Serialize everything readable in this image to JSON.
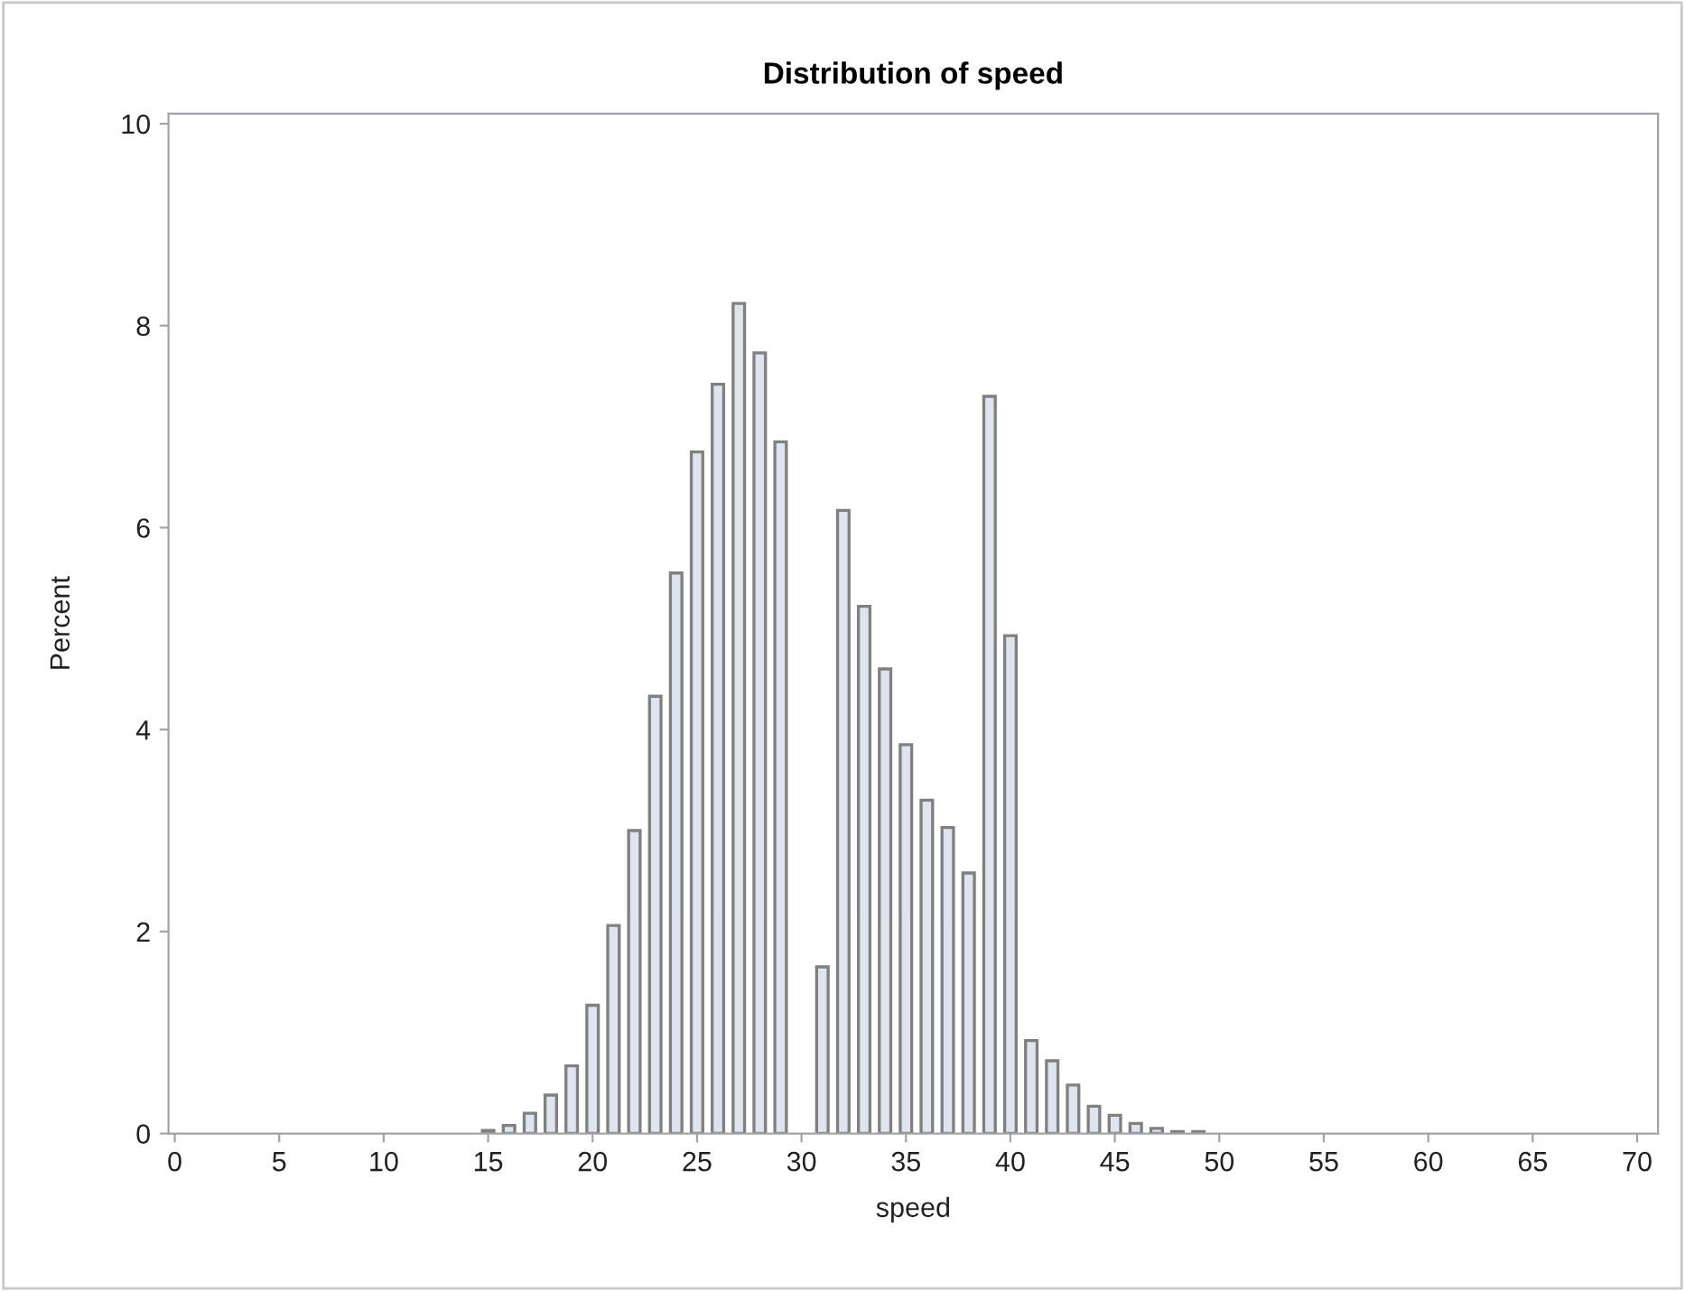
{
  "chart_data": {
    "type": "histogram",
    "title": "Distribution of speed",
    "xlabel": "speed",
    "ylabel": "Percent",
    "bins": [
      14.5,
      15.5,
      16.5,
      17.5,
      18.5,
      19.5,
      20.5,
      21.5,
      22.5,
      23.5,
      24.5,
      25.5,
      26.5,
      27.5,
      28.5,
      29.5,
      30.5,
      31.5,
      32.5,
      33.5,
      34.5,
      35.5,
      36.5,
      37.5,
      38.5,
      39.5,
      40.5,
      41.5,
      42.5,
      43.5,
      44.5,
      45.5,
      46.5,
      47.5,
      48.5,
      49.5
    ],
    "values": [
      0.03,
      0.08,
      0.2,
      0.38,
      0.67,
      1.27,
      2.06,
      3.0,
      4.33,
      5.55,
      6.75,
      7.42,
      8.22,
      7.73,
      6.85,
      0,
      1.65,
      6.17,
      5.22,
      4.6,
      3.85,
      3.3,
      3.03,
      2.58,
      7.3,
      4.93,
      0.92,
      0.72,
      0.48,
      0.27,
      0.18,
      0.1,
      0.05,
      0.02,
      0.02
    ],
    "color": "#dfe5ef",
    "xlim": [
      -0.3,
      71
    ],
    "xticks": [
      0,
      5,
      10,
      15,
      20,
      25,
      30,
      35,
      40,
      45,
      50,
      55,
      60,
      65,
      70
    ],
    "ylim": [
      0,
      10.1
    ],
    "yticks": [
      0,
      2,
      4,
      6,
      8,
      10
    ],
    "grid": false
  }
}
